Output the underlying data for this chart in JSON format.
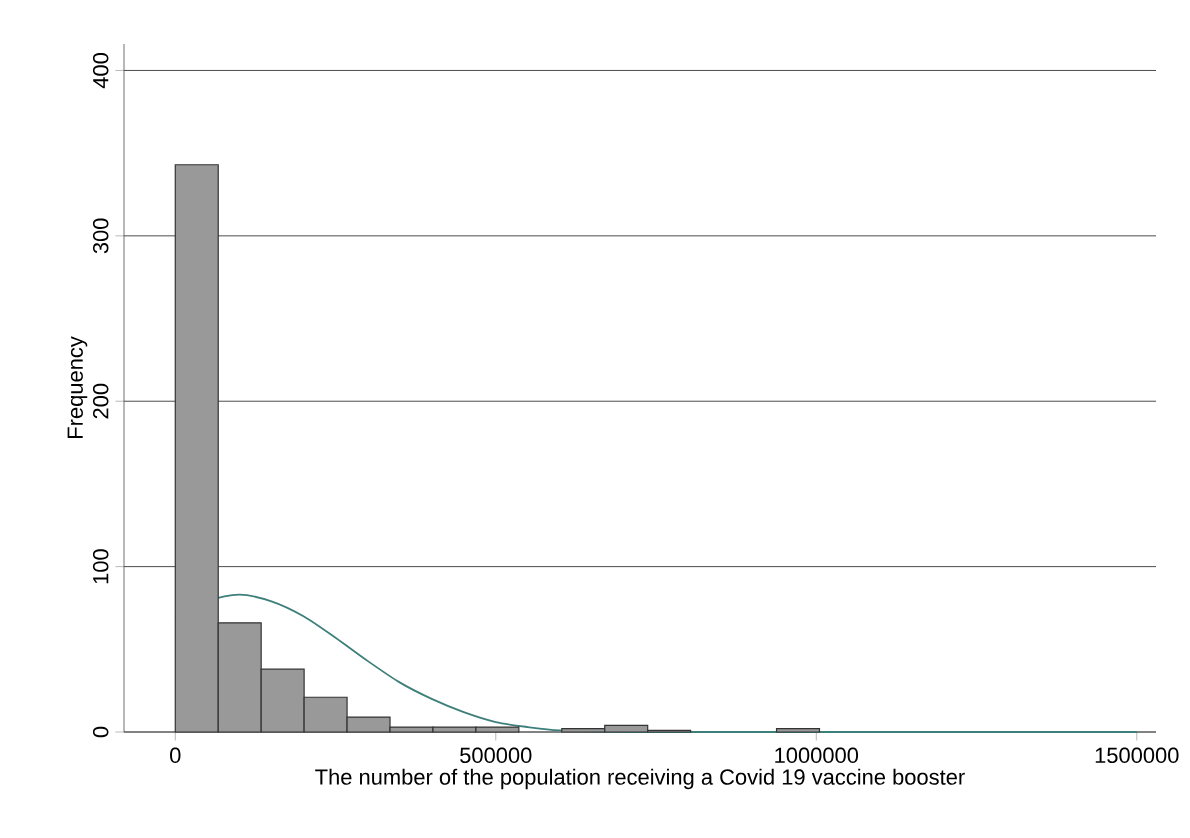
{
  "chart_data": {
    "type": "histogram",
    "xlabel": "The number of the population  receiving a Covid 19 vaccine booster",
    "ylabel": "Frequency",
    "bins": [
      0,
      67000,
      134000,
      201000,
      268000,
      335000,
      402000,
      469000,
      536000,
      603000,
      670000,
      737000,
      804000,
      871000,
      938000,
      1005000
    ],
    "values": [
      343,
      66,
      38,
      21,
      9,
      3,
      3,
      3,
      0,
      2,
      4,
      1,
      0,
      0,
      2
    ],
    "color": "#999999",
    "series": [
      {
        "type": "line",
        "color": "#3d7f7a",
        "x": [
          0,
          50000,
          100000,
          150000,
          200000,
          250000,
          300000,
          350000,
          400000,
          450000,
          500000,
          550000,
          600000,
          700000,
          800000,
          1000000,
          1500000
        ],
        "values": [
          69,
          79,
          83,
          79,
          70,
          57,
          43,
          30,
          20,
          12,
          6,
          3,
          1,
          0,
          0,
          0,
          0
        ]
      }
    ],
    "xlim": [
      -80000,
      1530000
    ],
    "ylim": [
      0,
      416
    ],
    "xticks": [
      0,
      500000,
      1000000,
      1500000
    ],
    "yticks": [
      0,
      100,
      200,
      300,
      400
    ],
    "grid": "y"
  }
}
